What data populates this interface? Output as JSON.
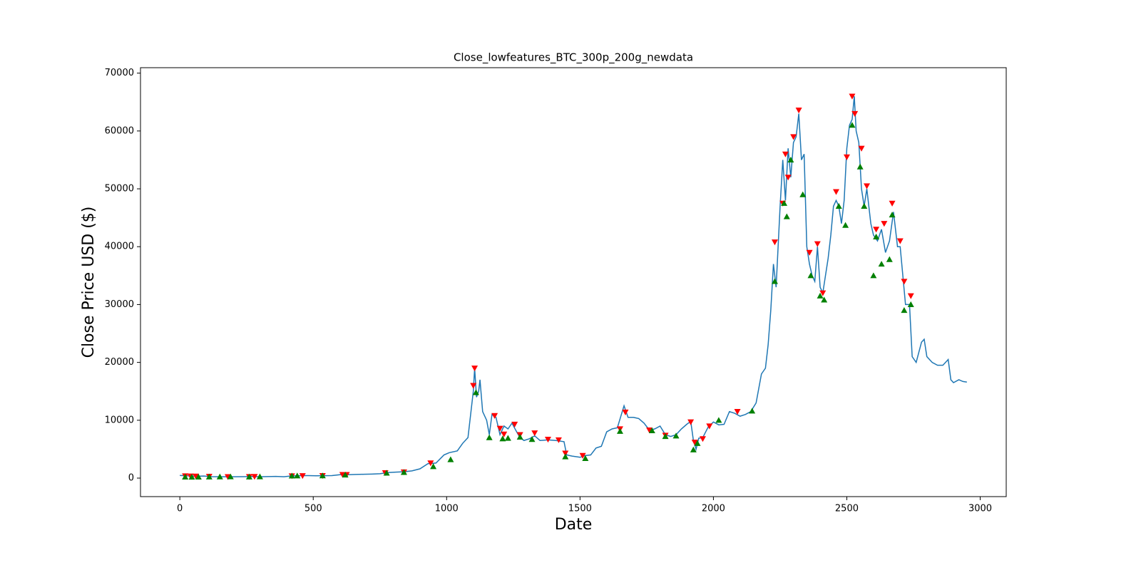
{
  "chart_data": {
    "type": "line",
    "title": "Close_lowfeatures_BTC_300p_200g_newdata",
    "xlabel": "Date",
    "ylabel": "Close Price USD ($)",
    "xlim": [
      -147.5,
      3097.5
    ],
    "ylim": [
      -3200,
      70940
    ],
    "xticks": [
      0,
      500,
      1000,
      1500,
      2000,
      2500,
      3000
    ],
    "yticks": [
      0,
      10000,
      20000,
      30000,
      40000,
      50000,
      60000,
      70000
    ],
    "grid": false,
    "series": [
      {
        "color": "#1f77b4",
        "marker": "none",
        "x": [
          0,
          30,
          60,
          90,
          120,
          150,
          180,
          210,
          240,
          270,
          300,
          330,
          360,
          390,
          420,
          450,
          480,
          510,
          540,
          570,
          600,
          630,
          660,
          690,
          720,
          750,
          780,
          810,
          840,
          870,
          900,
          930,
          960,
          990,
          1010,
          1040,
          1060,
          1080,
          1090,
          1100,
          1105,
          1112,
          1120,
          1125,
          1135,
          1150,
          1160,
          1170,
          1185,
          1200,
          1215,
          1230,
          1245,
          1260,
          1275,
          1290,
          1310,
          1330,
          1350,
          1380,
          1410,
          1440,
          1450,
          1470,
          1500,
          1520,
          1540,
          1560,
          1580,
          1600,
          1620,
          1640,
          1655,
          1665,
          1680,
          1700,
          1720,
          1740,
          1760,
          1780,
          1800,
          1820,
          1840,
          1860,
          1880,
          1900,
          1915,
          1925,
          1935,
          1945,
          1960,
          1980,
          2000,
          2020,
          2040,
          2060,
          2080,
          2100,
          2120,
          2140,
          2160,
          2180,
          2195,
          2205,
          2215,
          2225,
          2235,
          2250,
          2260,
          2270,
          2280,
          2290,
          2300,
          2310,
          2320,
          2330,
          2340,
          2350,
          2360,
          2370,
          2380,
          2390,
          2400,
          2410,
          2420,
          2430,
          2440,
          2450,
          2460,
          2470,
          2480,
          2490,
          2500,
          2510,
          2520,
          2528,
          2535,
          2545,
          2555,
          2565,
          2575,
          2590,
          2600,
          2615,
          2630,
          2645,
          2660,
          2675,
          2690,
          2700,
          2710,
          2720,
          2735,
          2745,
          2760,
          2780,
          2790,
          2800,
          2820,
          2840,
          2860,
          2880,
          2890,
          2900,
          2920,
          2935,
          2950
        ],
        "values": [
          460,
          380,
          330,
          350,
          250,
          230,
          240,
          230,
          250,
          280,
          240,
          260,
          300,
          230,
          380,
          420,
          430,
          410,
          420,
          440,
          580,
          590,
          640,
          660,
          700,
          760,
          950,
          1030,
          1100,
          1250,
          1600,
          2500,
          2600,
          4000,
          4400,
          4700,
          6000,
          7000,
          11000,
          15000,
          19000,
          14000,
          15000,
          17000,
          11500,
          10000,
          7500,
          11000,
          10500,
          7500,
          9000,
          8500,
          9500,
          8200,
          7000,
          6500,
          6800,
          7300,
          6500,
          6600,
          6500,
          6300,
          4000,
          3800,
          3600,
          3900,
          4000,
          5200,
          5500,
          8000,
          8500,
          8700,
          11000,
          12500,
          10500,
          10500,
          10300,
          9500,
          8300,
          8500,
          9000,
          7500,
          7200,
          7500,
          8500,
          9300,
          9800,
          6500,
          5000,
          6900,
          7000,
          8800,
          9700,
          9200,
          9300,
          11500,
          11200,
          10700,
          11000,
          11500,
          13000,
          18000,
          19000,
          23000,
          29000,
          37000,
          33000,
          47000,
          55000,
          48000,
          57000,
          52000,
          58000,
          59000,
          63000,
          55000,
          56000,
          40000,
          37000,
          35000,
          34000,
          40000,
          33000,
          32000,
          35000,
          38000,
          42000,
          47000,
          48000,
          47000,
          44000,
          48000,
          57000,
          61000,
          62000,
          66000,
          60000,
          58000,
          50000,
          47000,
          50000,
          44000,
          42000,
          41000,
          43000,
          39000,
          41000,
          46000,
          40000,
          40000,
          35000,
          30000,
          30000,
          21000,
          20000,
          23500,
          24000,
          21000,
          20000,
          19500,
          19500,
          20500,
          17000,
          16500,
          17000,
          16700,
          16600
        ]
      },
      {
        "color": "#ff0000",
        "marker": "v",
        "x": [
          20,
          40,
          60,
          110,
          180,
          260,
          280,
          420,
          460,
          535,
          610,
          625,
          770,
          840,
          940,
          1100,
          1105,
          1180,
          1200,
          1215,
          1255,
          1275,
          1330,
          1380,
          1420,
          1445,
          1510,
          1650,
          1670,
          1760,
          1820,
          1915,
          1930,
          1960,
          1985,
          2090,
          2230,
          2260,
          2270,
          2280,
          2300,
          2320,
          2360,
          2390,
          2410,
          2460,
          2500,
          2520,
          2530,
          2555,
          2575,
          2610,
          2640,
          2670,
          2700,
          2715,
          2740
        ],
        "values": [
          380,
          350,
          330,
          300,
          240,
          250,
          260,
          380,
          400,
          420,
          600,
          600,
          920,
          1050,
          2600,
          16000,
          19000,
          10800,
          8600,
          7600,
          9300,
          7500,
          7800,
          6700,
          6600,
          4300,
          3900,
          8500,
          11400,
          8300,
          7400,
          9700,
          6200,
          6800,
          9000,
          11500,
          40800,
          47500,
          56000,
          52000,
          59000,
          63600,
          39000,
          40500,
          32000,
          49500,
          55500,
          66000,
          63000,
          57000,
          50500,
          43000,
          44000,
          47500,
          41000,
          34000,
          31500
        ]
      },
      {
        "color": "#008000",
        "marker": "^",
        "x": [
          20,
          45,
          70,
          110,
          150,
          190,
          260,
          300,
          420,
          440,
          535,
          620,
          775,
          840,
          950,
          1015,
          1110,
          1160,
          1210,
          1230,
          1275,
          1320,
          1445,
          1520,
          1650,
          1770,
          1820,
          1860,
          1925,
          1940,
          2020,
          2145,
          2230,
          2265,
          2275,
          2290,
          2335,
          2365,
          2400,
          2415,
          2470,
          2495,
          2520,
          2550,
          2565,
          2600,
          2610,
          2630,
          2660,
          2670,
          2715,
          2740
        ],
        "values": [
          200,
          180,
          200,
          220,
          230,
          240,
          220,
          250,
          380,
          400,
          410,
          560,
          880,
          1000,
          2000,
          3200,
          14800,
          7000,
          6800,
          6900,
          7100,
          6700,
          3700,
          3400,
          8100,
          8200,
          7200,
          7300,
          4900,
          6000,
          10000,
          11600,
          34000,
          47500,
          45200,
          55000,
          49000,
          35000,
          31500,
          30800,
          47000,
          43700,
          61000,
          53800,
          47000,
          35000,
          41700,
          37000,
          37800,
          45500,
          29000,
          30000
        ]
      }
    ]
  }
}
